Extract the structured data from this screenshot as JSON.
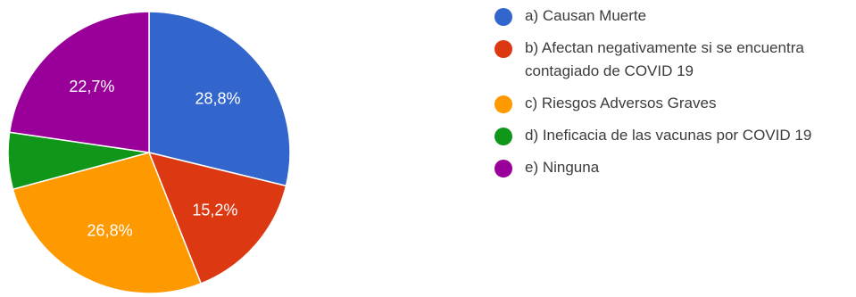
{
  "chart_data": {
    "type": "pie",
    "title": "",
    "slices": [
      {
        "label": "a) Causan Muerte",
        "value": 28.8,
        "display": "28,8%",
        "color": "#3366cc"
      },
      {
        "label": "b) Afectan negativamente si se encuentra contagiado de COVID 19",
        "value": 15.2,
        "display": "15,2%",
        "color": "#dc3912"
      },
      {
        "label": "c) Riesgos Adversos Graves",
        "value": 26.8,
        "display": "26,8%",
        "color": "#ff9900"
      },
      {
        "label": "d) Ineficacia de las vacunas por COVID 19",
        "value": 6.5,
        "display": "",
        "color": "#109618"
      },
      {
        "label": "e) Ninguna",
        "value": 22.7,
        "display": "22,7%",
        "color": "#990099"
      }
    ],
    "legend_position": "right",
    "start_angle_deg": 0,
    "direction": "clockwise"
  }
}
